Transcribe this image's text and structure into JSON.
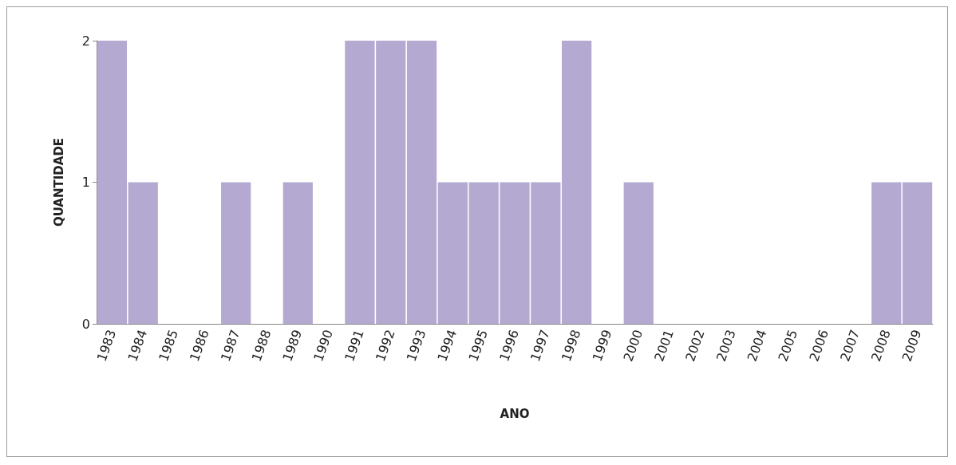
{
  "chart_data": {
    "type": "bar",
    "xlabel": "ANO",
    "ylabel": "QUANTIDADE",
    "categories": [
      "1983",
      "1984",
      "1985",
      "1986",
      "1987",
      "1988",
      "1989",
      "1990",
      "1991",
      "1992",
      "1993",
      "1994",
      "1995",
      "1996",
      "1997",
      "1998",
      "1999",
      "2000",
      "2001",
      "2002",
      "2003",
      "2004",
      "2005",
      "2006",
      "2007",
      "2008",
      "2009"
    ],
    "values": [
      2,
      1,
      0,
      0,
      1,
      0,
      1,
      0,
      2,
      2,
      2,
      1,
      1,
      1,
      1,
      2,
      0,
      1,
      0,
      0,
      0,
      0,
      0,
      0,
      0,
      1,
      1
    ],
    "color": "#b4a9d1",
    "ylim": [
      0,
      2
    ],
    "yticks": [
      0,
      1,
      2
    ],
    "grid": false
  }
}
